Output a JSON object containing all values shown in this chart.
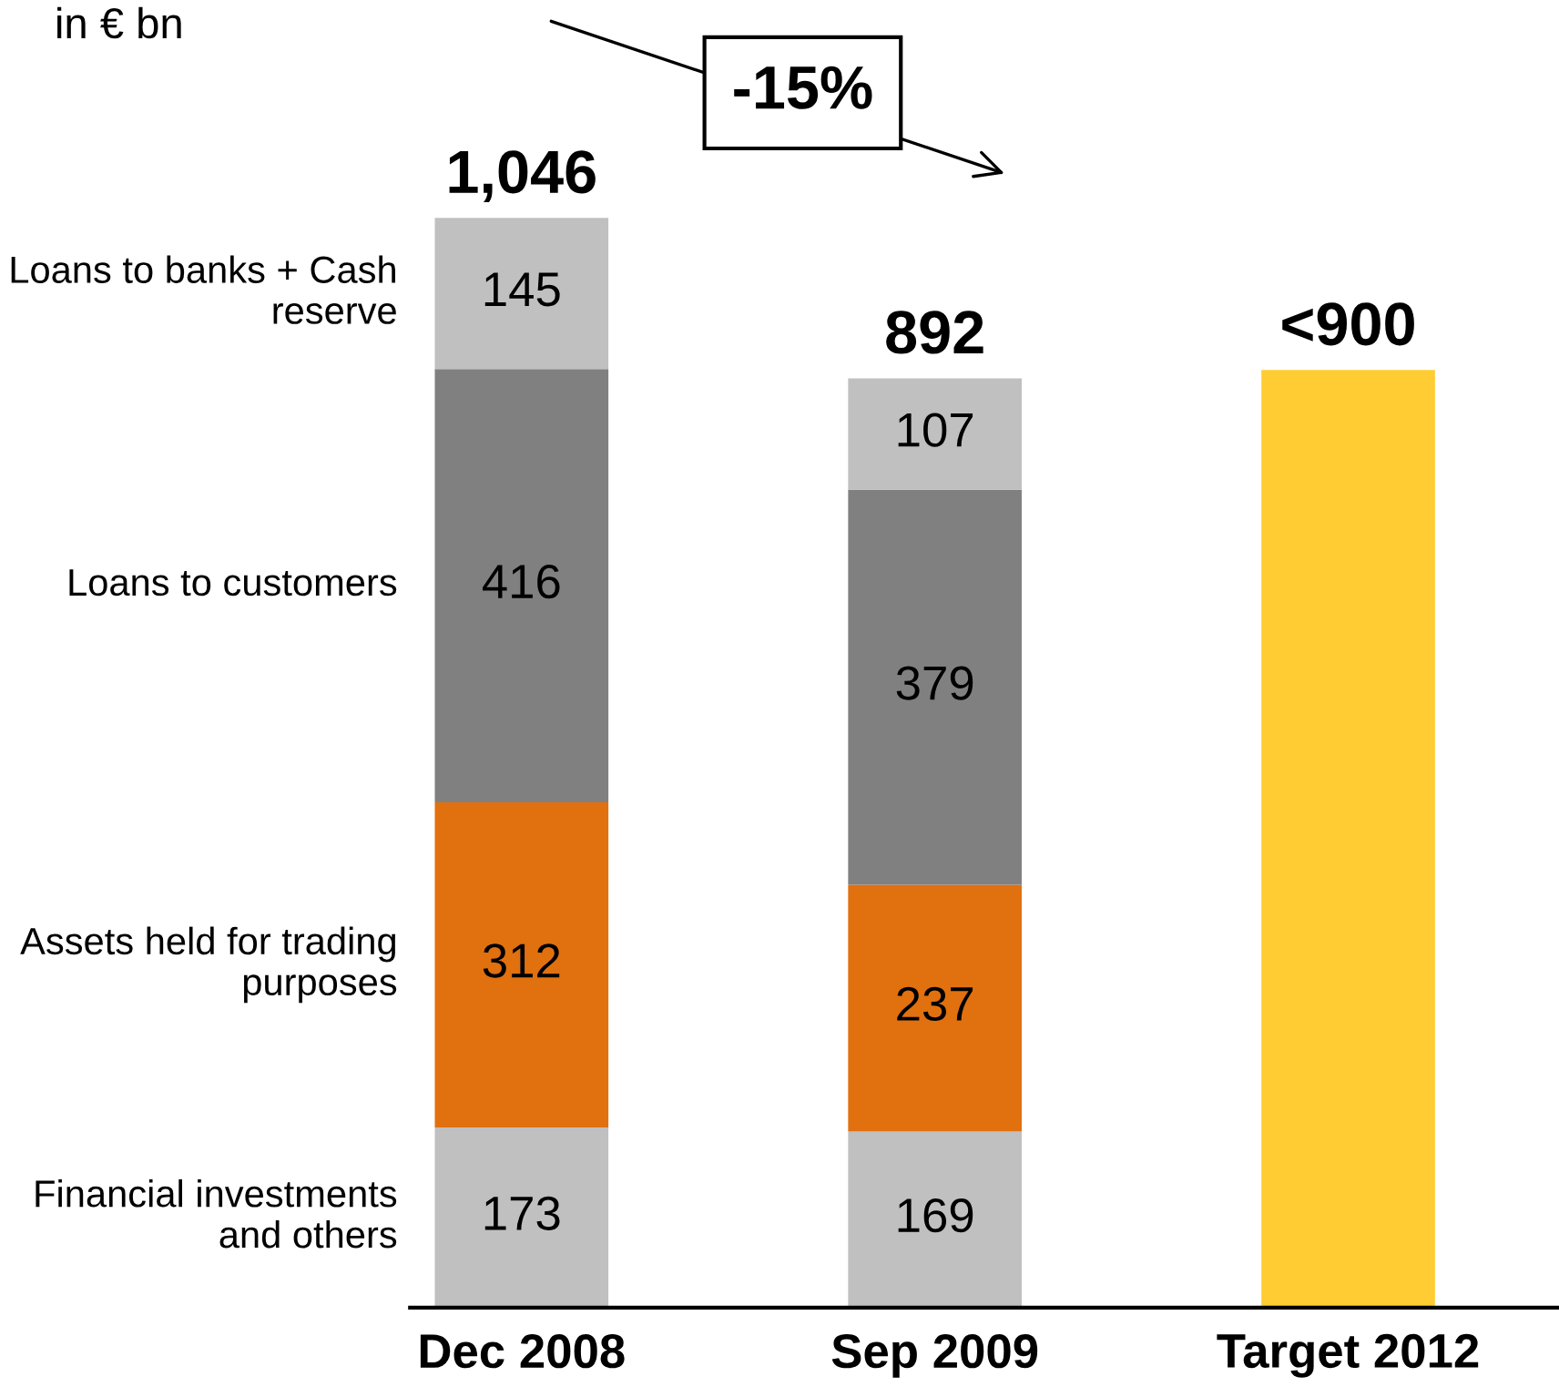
{
  "chart_data": {
    "type": "bar",
    "stacked": true,
    "categories": [
      "Dec 2008",
      "Sep 2009",
      "Target 2012"
    ],
    "series": [
      {
        "name": "Financial investments and others",
        "color": "#c0c0c0",
        "values": [
          173,
          169,
          null
        ],
        "value_labels": [
          "173",
          "169",
          null
        ]
      },
      {
        "name": "Assets held for trading purposes",
        "color": "#e1700f",
        "values": [
          312,
          237,
          null
        ],
        "value_labels": [
          "312",
          "237",
          null
        ]
      },
      {
        "name": "Loans to customers",
        "color": "#808080",
        "values": [
          416,
          379,
          null
        ],
        "value_labels": [
          "416",
          "379",
          null
        ]
      },
      {
        "name": "Loans to banks + Cash reserve",
        "color": "#c0c0c0",
        "values": [
          145,
          107,
          null
        ],
        "value_labels": [
          "145",
          "107",
          null
        ]
      },
      {
        "color": "#ffcc33",
        "values": [
          null,
          null,
          900
        ],
        "value_labels": [
          null,
          null,
          null
        ]
      }
    ],
    "totals": [
      "1,046",
      "892",
      "<900"
    ],
    "tick_labels": "x",
    "grid": false,
    "legend": false,
    "annotations": [
      "in € bn",
      "-15%"
    ]
  }
}
